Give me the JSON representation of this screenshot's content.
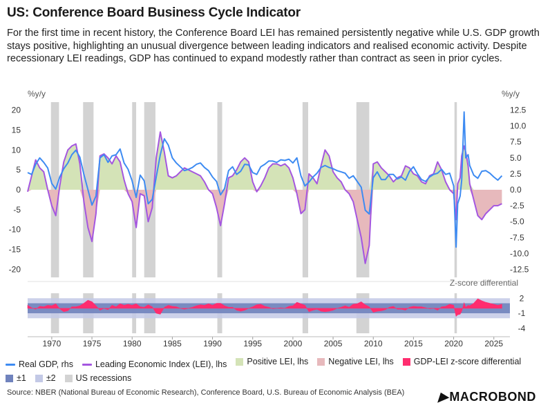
{
  "title": "US: Conference Board Business Cycle Indicator",
  "subtitle": "For the first time in recent history, the Conference Board LEI has remained persistently negative while U.S. GDP growth stays positive, highlighting an unusual divergence between leading indicators and realised economic activity. Despite recessionary LEI readings, GDP has continued to expand modestly rather than contract as seen in prior cycles.",
  "source": "Source: NBER (National Bureau of Economic Research), Conference Board, U.S. Bureau of Economic Analysis (BEA)",
  "logo": "MACROBOND",
  "legend": [
    {
      "label": "Real GDP, rhs",
      "color": "#3d8bf2",
      "kind": "line"
    },
    {
      "label": "Leading Economic Index (LEI), lhs",
      "color": "#a456e0",
      "kind": "line"
    },
    {
      "label": "Positive LEI, lhs",
      "color": "#d4e3b7",
      "kind": "box"
    },
    {
      "label": "Negative LEI, lhs",
      "color": "#e7b9bc",
      "kind": "box"
    },
    {
      "label": "GDP-LEI z-score differential",
      "color": "#ff2d6f",
      "kind": "box"
    },
    {
      "label": "±1",
      "color": "#7083bd",
      "kind": "box"
    },
    {
      "label": "±2",
      "color": "#c3c9e6",
      "kind": "box"
    },
    {
      "label": "US recessions",
      "color": "#d3d3d3",
      "kind": "box"
    }
  ],
  "colors": {
    "gdp": "#3d8bf2",
    "lei": "#a456e0",
    "pos": "#d4e3b7",
    "neg": "#e7b9bc",
    "z": "#ff2d6f",
    "band1": "#7083bd",
    "band2": "#c3c9e6",
    "recession": "#d3d3d3"
  },
  "chart_data": [
    {
      "type": "line",
      "name": "main",
      "lhs_unit": "%y/y",
      "rhs_unit": "%y/y",
      "lhs_ylim": [
        -22,
        22
      ],
      "rhs_ylim": [
        -13.75,
        13.75
      ],
      "lhs_ticks": [
        20,
        15,
        10,
        5,
        0,
        -5,
        -10,
        -15,
        -20
      ],
      "rhs_ticks": [
        "12.5",
        "10.0",
        "7.5",
        "5.0",
        "2.5",
        "0.0",
        "-2.5",
        "-5.0",
        "-7.5",
        "-10.0",
        "-12.5"
      ],
      "x_ticks": [
        1970,
        1975,
        1980,
        1985,
        1990,
        1995,
        2000,
        2005,
        2010,
        2015,
        2020,
        2025
      ],
      "xlim": [
        1967,
        2027
      ],
      "recessions": [
        [
          1969.9,
          1970.9
        ],
        [
          1973.9,
          1975.2
        ],
        [
          1980.0,
          1980.5
        ],
        [
          1981.5,
          1982.9
        ],
        [
          1990.6,
          1991.2
        ],
        [
          2001.2,
          2001.9
        ],
        [
          2007.9,
          2009.5
        ],
        [
          2020.1,
          2020.4
        ]
      ],
      "series": [
        {
          "name": "Real GDP, rhs",
          "axis": "rhs",
          "x": [
            1967.0,
            1967.5,
            1968.0,
            1968.5,
            1969.0,
            1969.5,
            1970.0,
            1970.5,
            1971.0,
            1971.5,
            1972.0,
            1972.5,
            1973.0,
            1973.5,
            1974.0,
            1974.5,
            1975.0,
            1975.5,
            1976.0,
            1976.5,
            1977.0,
            1977.5,
            1978.0,
            1978.5,
            1979.0,
            1979.5,
            1980.0,
            1980.5,
            1981.0,
            1981.5,
            1982.0,
            1982.5,
            1983.0,
            1983.5,
            1984.0,
            1984.5,
            1985.0,
            1985.5,
            1986.0,
            1986.5,
            1987.0,
            1987.5,
            1988.0,
            1988.5,
            1989.0,
            1989.5,
            1990.0,
            1990.5,
            1991.0,
            1991.5,
            1992.0,
            1992.5,
            1993.0,
            1993.5,
            1994.0,
            1994.5,
            1995.0,
            1995.5,
            1996.0,
            1996.5,
            1997.0,
            1997.5,
            1998.0,
            1998.5,
            1999.0,
            1999.5,
            2000.0,
            2000.5,
            2001.0,
            2001.5,
            2002.0,
            2002.5,
            2003.0,
            2003.5,
            2004.0,
            2004.5,
            2005.0,
            2005.5,
            2006.0,
            2006.5,
            2007.0,
            2007.5,
            2008.0,
            2008.5,
            2009.0,
            2009.5,
            2010.0,
            2010.5,
            2011.0,
            2011.5,
            2012.0,
            2012.5,
            2013.0,
            2013.5,
            2014.0,
            2014.5,
            2015.0,
            2015.5,
            2016.0,
            2016.5,
            2017.0,
            2017.5,
            2018.0,
            2018.5,
            2019.0,
            2019.5,
            2020.0,
            2020.3,
            2020.5,
            2020.8,
            2021.0,
            2021.3,
            2021.5,
            2021.8,
            2022.0,
            2022.5,
            2023.0,
            2023.5,
            2024.0,
            2024.5,
            2025.0,
            2025.5,
            2026.0
          ],
          "y": [
            2.7,
            2.4,
            4.0,
            5.0,
            4.3,
            3.4,
            1.0,
            0.1,
            2.0,
            3.3,
            4.2,
            5.5,
            6.2,
            5.1,
            2.4,
            0.0,
            -2.4,
            -1.0,
            5.0,
            5.5,
            4.3,
            5.3,
            5.5,
            6.4,
            4.2,
            3.2,
            1.4,
            -1.2,
            2.3,
            1.4,
            -2.2,
            -1.5,
            2.0,
            5.5,
            8.0,
            7.0,
            5.0,
            4.2,
            3.6,
            3.0,
            3.2,
            3.5,
            4.0,
            4.2,
            3.5,
            3.0,
            2.0,
            1.3,
            -0.8,
            0.2,
            3.0,
            3.6,
            2.4,
            2.9,
            4.0,
            3.9,
            2.7,
            2.4,
            3.6,
            4.0,
            4.5,
            4.5,
            4.3,
            4.7,
            4.6,
            4.8,
            4.2,
            5.0,
            2.2,
            0.6,
            1.2,
            2.0,
            2.6,
            3.5,
            3.8,
            3.5,
            3.3,
            3.0,
            2.8,
            2.6,
            1.8,
            2.2,
            1.3,
            0.4,
            -3.2,
            -3.8,
            1.9,
            2.8,
            1.6,
            1.6,
            2.4,
            2.4,
            1.7,
            2.0,
            1.5,
            2.9,
            3.6,
            2.5,
            1.6,
            1.3,
            2.0,
            2.4,
            2.6,
            3.2,
            2.4,
            2.6,
            0.6,
            -9.0,
            -2.2,
            -1.0,
            1.5,
            12.2,
            5.0,
            5.5,
            3.8,
            2.3,
            1.8,
            2.9,
            3.0,
            2.6,
            2.0,
            1.5,
            2.2
          ]
        },
        {
          "name": "Leading Economic Index (LEI), lhs",
          "axis": "lhs",
          "x": [
            1967.0,
            1967.5,
            1968.0,
            1968.5,
            1969.0,
            1969.5,
            1970.0,
            1970.5,
            1971.0,
            1971.5,
            1972.0,
            1972.5,
            1973.0,
            1973.5,
            1974.0,
            1974.5,
            1975.0,
            1975.5,
            1976.0,
            1976.5,
            1977.0,
            1977.5,
            1978.0,
            1978.5,
            1979.0,
            1979.5,
            1980.0,
            1980.5,
            1981.0,
            1981.5,
            1982.0,
            1982.5,
            1983.0,
            1983.5,
            1984.0,
            1984.5,
            1985.0,
            1985.5,
            1986.0,
            1986.5,
            1987.0,
            1987.5,
            1988.0,
            1988.5,
            1989.0,
            1989.5,
            1990.0,
            1990.5,
            1991.0,
            1991.5,
            1992.0,
            1992.5,
            1993.0,
            1993.5,
            1994.0,
            1994.5,
            1995.0,
            1995.5,
            1996.0,
            1996.5,
            1997.0,
            1997.5,
            1998.0,
            1998.5,
            1999.0,
            1999.5,
            2000.0,
            2000.5,
            2001.0,
            2001.5,
            2002.0,
            2002.5,
            2003.0,
            2003.5,
            2004.0,
            2004.5,
            2005.0,
            2005.5,
            2006.0,
            2006.5,
            2007.0,
            2007.5,
            2008.0,
            2008.5,
            2009.0,
            2009.5,
            2010.0,
            2010.5,
            2011.0,
            2011.5,
            2012.0,
            2012.5,
            2013.0,
            2013.5,
            2014.0,
            2014.5,
            2015.0,
            2015.5,
            2016.0,
            2016.5,
            2017.0,
            2017.5,
            2018.0,
            2018.5,
            2019.0,
            2019.5,
            2020.0,
            2020.3,
            2020.5,
            2020.8,
            2021.0,
            2021.3,
            2021.5,
            2021.8,
            2022.0,
            2022.5,
            2023.0,
            2023.5,
            2024.0,
            2024.5,
            2025.0,
            2025.5,
            2026.0
          ],
          "y": [
            -0.5,
            3.5,
            7.5,
            5.5,
            4.5,
            0.0,
            -4.0,
            -6.5,
            1.0,
            7.0,
            10.0,
            11.0,
            11.5,
            6.5,
            -3.0,
            -9.5,
            -13.0,
            -6.0,
            8.5,
            9.0,
            8.0,
            6.5,
            8.5,
            7.0,
            2.5,
            -1.0,
            -3.0,
            -9.5,
            -1.0,
            -1.5,
            -8.0,
            -4.5,
            8.0,
            14.5,
            9.5,
            3.5,
            3.0,
            3.5,
            4.5,
            5.5,
            5.0,
            4.5,
            4.0,
            3.5,
            2.0,
            0.0,
            -1.0,
            -4.5,
            -9.0,
            -3.5,
            3.0,
            3.5,
            5.0,
            7.0,
            8.0,
            7.0,
            2.0,
            -0.5,
            1.0,
            3.0,
            5.5,
            6.5,
            6.5,
            6.0,
            6.5,
            5.5,
            3.0,
            -1.0,
            -6.0,
            -5.0,
            4.0,
            3.0,
            1.5,
            6.0,
            10.0,
            8.5,
            4.5,
            3.0,
            2.0,
            0.0,
            -1.0,
            -3.0,
            -7.5,
            -12.0,
            -18.5,
            -14.0,
            6.5,
            7.0,
            5.5,
            4.5,
            3.5,
            2.0,
            3.0,
            3.5,
            6.0,
            5.5,
            4.0,
            3.5,
            2.0,
            1.5,
            3.5,
            4.0,
            7.0,
            5.0,
            2.0,
            0.0,
            -1.0,
            -7.5,
            1.5,
            3.0,
            8.5,
            11.0,
            9.5,
            6.0,
            1.5,
            -2.5,
            -6.5,
            -7.5,
            -6.0,
            -5.0,
            -4.0,
            -4.0,
            -3.5
          ]
        }
      ]
    },
    {
      "type": "area",
      "name": "z-score",
      "title": "Z-score differential",
      "ylim": [
        -5.0,
        3.0
      ],
      "y_ticks": [
        2,
        -1,
        -4
      ],
      "band1": [
        -1,
        1
      ],
      "band2": [
        -2,
        2
      ],
      "series": [
        {
          "name": "GDP-LEI z-score differential",
          "x": [
            1967.0,
            1967.5,
            1968.0,
            1968.5,
            1969.0,
            1969.5,
            1970.0,
            1970.5,
            1971.0,
            1971.5,
            1972.0,
            1972.5,
            1973.0,
            1973.5,
            1974.0,
            1974.5,
            1975.0,
            1975.5,
            1976.0,
            1976.5,
            1977.0,
            1977.5,
            1978.0,
            1978.5,
            1979.0,
            1979.5,
            1980.0,
            1980.5,
            1981.0,
            1981.5,
            1982.0,
            1982.5,
            1983.0,
            1983.5,
            1984.0,
            1984.5,
            1985.0,
            1985.5,
            1986.0,
            1986.5,
            1987.0,
            1987.5,
            1988.0,
            1988.5,
            1989.0,
            1989.5,
            1990.0,
            1990.5,
            1991.0,
            1991.5,
            1992.0,
            1992.5,
            1993.0,
            1993.5,
            1994.0,
            1994.5,
            1995.0,
            1995.5,
            1996.0,
            1996.5,
            1997.0,
            1997.5,
            1998.0,
            1998.5,
            1999.0,
            1999.5,
            2000.0,
            2000.5,
            2001.0,
            2001.5,
            2002.0,
            2002.5,
            2003.0,
            2003.5,
            2004.0,
            2004.5,
            2005.0,
            2005.5,
            2006.0,
            2006.5,
            2007.0,
            2007.5,
            2008.0,
            2008.5,
            2009.0,
            2009.5,
            2010.0,
            2010.5,
            2011.0,
            2011.5,
            2012.0,
            2012.5,
            2013.0,
            2013.5,
            2014.0,
            2014.5,
            2015.0,
            2015.5,
            2016.0,
            2016.5,
            2017.0,
            2017.5,
            2018.0,
            2018.5,
            2019.0,
            2019.5,
            2020.0,
            2020.3,
            2020.5,
            2020.8,
            2021.0,
            2021.3,
            2021.5,
            2021.8,
            2022.0,
            2022.5,
            2023.0,
            2023.5,
            2024.0,
            2024.5,
            2025.0,
            2025.5,
            2026.0
          ],
          "y": [
            0.6,
            0.1,
            -0.2,
            0.4,
            0.3,
            0.6,
            0.5,
            0.9,
            -0.1,
            -0.7,
            -0.5,
            0.3,
            0.3,
            0.5,
            1.0,
            1.6,
            1.3,
            0.5,
            -0.4,
            0.0,
            -0.3,
            0.6,
            0.3,
            0.9,
            0.6,
            0.8,
            0.6,
            0.9,
            0.3,
            0.2,
            0.7,
            0.3,
            -1.0,
            -1.2,
            0.2,
            0.6,
            0.4,
            0.3,
            0.0,
            -0.2,
            0.0,
            0.2,
            0.5,
            0.7,
            0.6,
            0.9,
            0.6,
            1.0,
            1.0,
            0.5,
            0.2,
            0.2,
            -0.4,
            -0.6,
            -0.4,
            0.0,
            0.3,
            0.7,
            0.8,
            0.4,
            0.2,
            -0.1,
            0.0,
            0.1,
            0.0,
            0.4,
            0.5,
            1.2,
            0.9,
            0.6,
            -0.7,
            -0.4,
            -0.2,
            -0.6,
            -0.7,
            -0.6,
            -0.4,
            0.0,
            0.2,
            0.5,
            0.2,
            0.8,
            0.9,
            1.3,
            0.7,
            0.3,
            -0.8,
            -0.6,
            -0.5,
            -0.3,
            0.2,
            0.4,
            -0.2,
            -0.2,
            -0.4,
            0.2,
            0.4,
            0.3,
            0.3,
            0.1,
            -0.1,
            0.0,
            -0.4,
            0.3,
            0.4,
            0.8,
            0.6,
            -1.6,
            -1.3,
            -1.2,
            -0.6,
            1.1,
            0.2,
            0.6,
            0.5,
            1.0,
            1.9,
            1.5,
            1.2,
            1.0,
            0.8,
            0.6,
            0.8
          ]
        }
      ]
    }
  ]
}
